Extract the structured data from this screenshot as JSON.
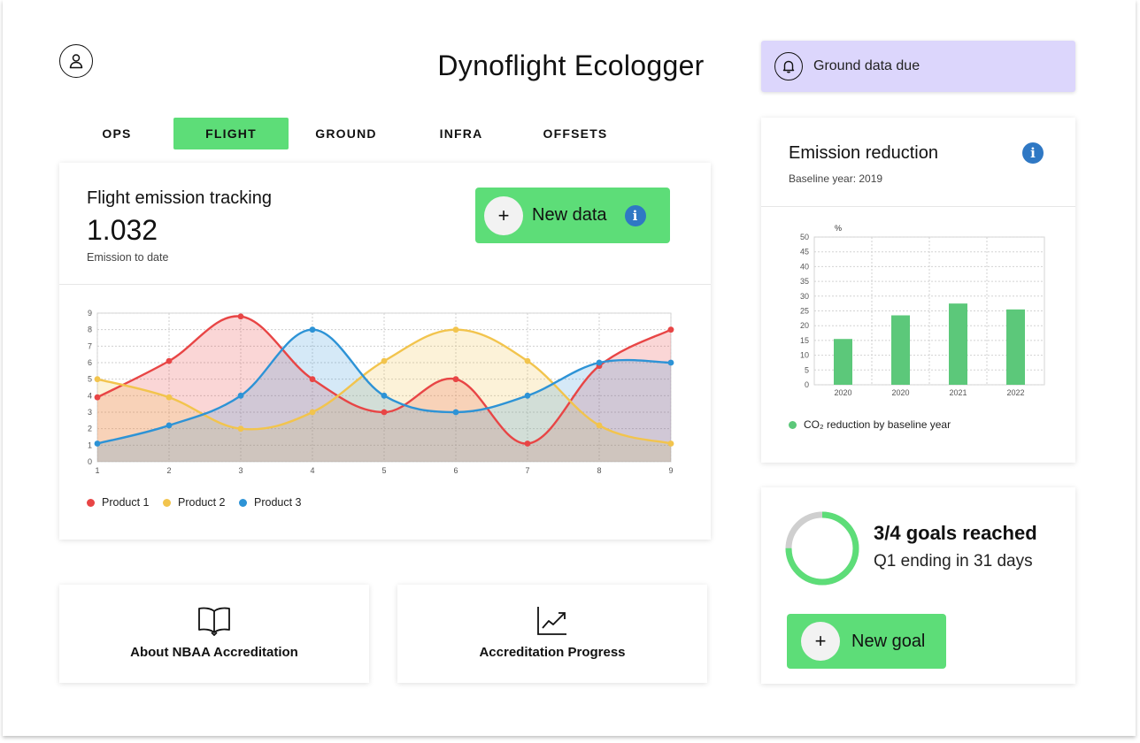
{
  "app": {
    "title": "Dynoflight Ecologger"
  },
  "notification": {
    "text": "Ground data due",
    "icon": "bell-icon"
  },
  "user": {
    "icon": "user-icon"
  },
  "tabs": [
    {
      "label": "OPS",
      "active": false
    },
    {
      "label": "FLIGHT",
      "active": true
    },
    {
      "label": "GROUND",
      "active": false
    },
    {
      "label": "INFRA",
      "active": false
    },
    {
      "label": "OFFSETS",
      "active": false
    }
  ],
  "flight_card": {
    "title": "Flight emission tracking",
    "value": "1.032",
    "subtitle": "Emission to date",
    "new_data_label": "New data",
    "legend": [
      "Product 1",
      "Product 2",
      "Product 3"
    ]
  },
  "links": {
    "about": {
      "label": "About NBAA Accreditation",
      "icon": "book-icon"
    },
    "progress": {
      "label": "Accreditation Progress",
      "icon": "trend-chart-icon"
    }
  },
  "emission_card": {
    "title": "Emission reduction",
    "subtitle": "Baseline year: 2019",
    "legend": "CO₂ reduction by baseline year"
  },
  "goals": {
    "title": "3/4 goals reached",
    "subtitle": "Q1 ending in 31 days",
    "progress": 0.75,
    "new_goal_label": "New goal"
  },
  "colors": {
    "accent": "#5ddd78",
    "product1": "#e84545",
    "product2": "#f2c44d",
    "product3": "#2d93d6",
    "bar": "#5cc87a",
    "notification_bg": "#dcd6fc"
  },
  "chart_data": [
    {
      "type": "area",
      "x": [
        1,
        2,
        3,
        4,
        5,
        6,
        7,
        8,
        9
      ],
      "series": [
        {
          "name": "Product 1",
          "values": [
            3.9,
            6.1,
            8.8,
            5.0,
            3.0,
            5.0,
            1.1,
            5.8,
            8.0
          ],
          "color": "#e84545"
        },
        {
          "name": "Product 2",
          "values": [
            5.0,
            3.9,
            2.0,
            3.0,
            6.1,
            8.0,
            6.1,
            2.2,
            1.1
          ],
          "color": "#f2c44d"
        },
        {
          "name": "Product 3",
          "values": [
            1.1,
            2.2,
            4.0,
            8.0,
            4.0,
            3.0,
            4.0,
            6.0,
            6.0
          ],
          "color": "#2d93d6"
        }
      ],
      "xlim": [
        1,
        9
      ],
      "ylim": [
        0,
        9
      ],
      "yticks": [
        0,
        1,
        2,
        3,
        4,
        5,
        6,
        7,
        8,
        9
      ],
      "grid": true,
      "legend_position": "bottom-left"
    },
    {
      "type": "bar",
      "categories": [
        "2020",
        "2020",
        "2021",
        "2022"
      ],
      "values": [
        15.5,
        23.5,
        27.5,
        25.5
      ],
      "ylabel": "%",
      "ylim": [
        0,
        50
      ],
      "yticks": [
        0,
        5,
        10,
        15,
        20,
        25,
        30,
        35,
        40,
        45,
        50
      ],
      "grid": true,
      "legend_position": "bottom-left"
    }
  ]
}
